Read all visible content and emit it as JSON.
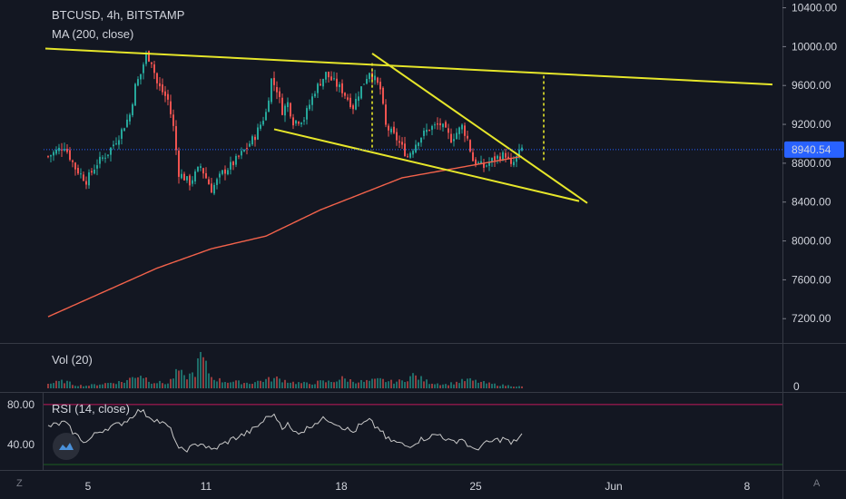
{
  "header": {
    "symbol_line": "BTCUSD, 4h, BITSTAMP",
    "ma_label": "MA (200, close)"
  },
  "panes": {
    "volume_label": "Vol (20)",
    "volume_axis_label": "0",
    "rsi_label": "RSI (14, close)"
  },
  "footer": {
    "left_corner": "Z",
    "right_corner": "A"
  },
  "colors": {
    "background": "#131722",
    "up": "#26a69a",
    "down": "#ef5350",
    "trendline": "#e6e62a",
    "ma": "#f2624b",
    "rsi_line": "#c8c8c8",
    "price_line": "#2962ff",
    "price_tag_bg": "#2962ff"
  },
  "chart_data": [
    {
      "type": "candlestick",
      "title": "BTCUSD, 4h, BITSTAMP",
      "y_axis_ticks": [
        "10400.00",
        "10000.00",
        "9600.00",
        "9200.00",
        "8800.00",
        "8400.00",
        "8000.00",
        "7600.00",
        "7200.00"
      ],
      "ylim": [
        6950,
        10480
      ],
      "x_axis_ticks": [
        "5",
        "11",
        "18",
        "25",
        "Jun",
        "8"
      ],
      "last_price": "8940.54",
      "close_path": [
        [
          0,
          8870
        ],
        [
          6,
          8980
        ],
        [
          10,
          8750
        ],
        [
          14,
          8620
        ],
        [
          18,
          8800
        ],
        [
          22,
          8910
        ],
        [
          26,
          9080
        ],
        [
          30,
          9300
        ],
        [
          32,
          9590
        ],
        [
          34,
          9720
        ],
        [
          36,
          9920
        ],
        [
          38,
          9850
        ],
        [
          40,
          9620
        ],
        [
          44,
          9450
        ],
        [
          46,
          9170
        ],
        [
          48,
          8700
        ],
        [
          52,
          8600
        ],
        [
          56,
          8770
        ],
        [
          60,
          8530
        ],
        [
          64,
          8700
        ],
        [
          68,
          8800
        ],
        [
          72,
          8930
        ],
        [
          76,
          9080
        ],
        [
          80,
          9320
        ],
        [
          82,
          9660
        ],
        [
          84,
          9560
        ],
        [
          86,
          9340
        ],
        [
          88,
          9420
        ],
        [
          90,
          9230
        ],
        [
          94,
          9260
        ],
        [
          98,
          9550
        ],
        [
          102,
          9720
        ],
        [
          104,
          9660
        ],
        [
          108,
          9550
        ],
        [
          112,
          9380
        ],
        [
          114,
          9520
        ],
        [
          118,
          9750
        ],
        [
          120,
          9660
        ],
        [
          122,
          9560
        ],
        [
          124,
          9180
        ],
        [
          128,
          9050
        ],
        [
          132,
          8870
        ],
        [
          136,
          9050
        ],
        [
          140,
          9160
        ],
        [
          144,
          9200
        ],
        [
          148,
          9050
        ],
        [
          152,
          9180
        ],
        [
          154,
          9050
        ],
        [
          156,
          8830
        ],
        [
          160,
          8760
        ],
        [
          164,
          8850
        ],
        [
          168,
          8890
        ],
        [
          170,
          8760
        ],
        [
          174,
          8950
        ]
      ],
      "moving_average": {
        "name": "MA (200, close)",
        "points": [
          [
            0,
            7220
          ],
          [
            40,
            7720
          ],
          [
            60,
            7920
          ],
          [
            80,
            8050
          ],
          [
            100,
            8320
          ],
          [
            130,
            8650
          ],
          [
            160,
            8800
          ],
          [
            174,
            8870
          ]
        ]
      },
      "trendlines": [
        {
          "from": [
            0,
            9980
          ],
          "to": [
            267,
            9610
          ]
        },
        {
          "from": [
            84,
            9150
          ],
          "to": [
            196,
            8410
          ]
        },
        {
          "from": [
            120,
            9930
          ],
          "to": [
            199,
            8390
          ]
        }
      ],
      "dotted_markers": [
        {
          "x": 120,
          "from": 9830,
          "to": 8930
        },
        {
          "x": 183,
          "from": 9700,
          "to": 8830
        }
      ]
    },
    {
      "type": "bar",
      "title": "Vol (20)",
      "volume_path": [
        [
          0,
          0.14
        ],
        [
          6,
          0.22
        ],
        [
          10,
          0.1
        ],
        [
          14,
          0.08
        ],
        [
          18,
          0.12
        ],
        [
          24,
          0.18
        ],
        [
          28,
          0.2
        ],
        [
          32,
          0.38
        ],
        [
          34,
          0.42
        ],
        [
          38,
          0.2
        ],
        [
          44,
          0.15
        ],
        [
          48,
          0.55
        ],
        [
          50,
          0.32
        ],
        [
          54,
          0.48
        ],
        [
          56,
          1.0
        ],
        [
          60,
          0.34
        ],
        [
          64,
          0.22
        ],
        [
          68,
          0.2
        ],
        [
          74,
          0.16
        ],
        [
          80,
          0.26
        ],
        [
          84,
          0.3
        ],
        [
          90,
          0.18
        ],
        [
          96,
          0.14
        ],
        [
          100,
          0.2
        ],
        [
          104,
          0.2
        ],
        [
          108,
          0.3
        ],
        [
          112,
          0.22
        ],
        [
          116,
          0.2
        ],
        [
          122,
          0.26
        ],
        [
          126,
          0.2
        ],
        [
          130,
          0.22
        ],
        [
          134,
          0.4
        ],
        [
          140,
          0.18
        ],
        [
          146,
          0.12
        ],
        [
          150,
          0.18
        ],
        [
          154,
          0.26
        ],
        [
          158,
          0.2
        ],
        [
          162,
          0.14
        ],
        [
          166,
          0.1
        ],
        [
          170,
          0.08
        ],
        [
          174,
          0.05
        ]
      ]
    },
    {
      "type": "line",
      "title": "RSI (14, close)",
      "y_axis_ticks": [
        "80.00",
        "40.00"
      ],
      "ylim": [
        20,
        88
      ],
      "rsi_path": [
        [
          0,
          58
        ],
        [
          6,
          62
        ],
        [
          10,
          50
        ],
        [
          14,
          42
        ],
        [
          18,
          52
        ],
        [
          22,
          57
        ],
        [
          26,
          60
        ],
        [
          30,
          66
        ],
        [
          32,
          72
        ],
        [
          34,
          74
        ],
        [
          36,
          70
        ],
        [
          40,
          64
        ],
        [
          44,
          58
        ],
        [
          46,
          50
        ],
        [
          48,
          34
        ],
        [
          52,
          36
        ],
        [
          56,
          42
        ],
        [
          60,
          34
        ],
        [
          64,
          40
        ],
        [
          68,
          46
        ],
        [
          72,
          50
        ],
        [
          76,
          56
        ],
        [
          80,
          66
        ],
        [
          82,
          70
        ],
        [
          84,
          66
        ],
        [
          86,
          58
        ],
        [
          88,
          60
        ],
        [
          90,
          52
        ],
        [
          94,
          54
        ],
        [
          98,
          62
        ],
        [
          102,
          66
        ],
        [
          104,
          64
        ],
        [
          108,
          58
        ],
        [
          112,
          52
        ],
        [
          114,
          58
        ],
        [
          118,
          64
        ],
        [
          120,
          58
        ],
        [
          122,
          55
        ],
        [
          124,
          46
        ],
        [
          128,
          42
        ],
        [
          132,
          38
        ],
        [
          136,
          44
        ],
        [
          140,
          48
        ],
        [
          144,
          50
        ],
        [
          148,
          42
        ],
        [
          152,
          46
        ],
        [
          154,
          40
        ],
        [
          156,
          34
        ],
        [
          160,
          40
        ],
        [
          164,
          44
        ],
        [
          168,
          46
        ],
        [
          170,
          40
        ],
        [
          174,
          50
        ]
      ]
    }
  ]
}
